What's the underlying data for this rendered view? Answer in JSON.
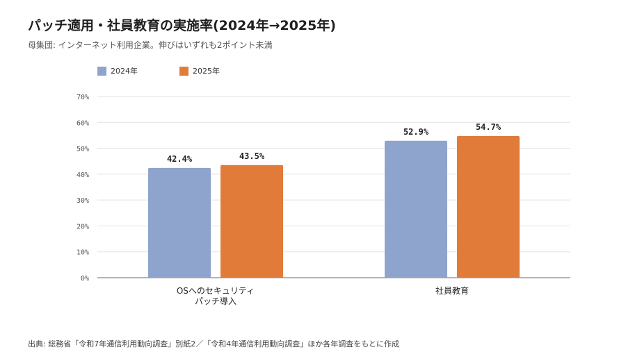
{
  "chart_data": {
    "type": "bar",
    "title": "パッチ適用・社員教育の実施率(2024年→2025年)",
    "subtitle": "母集団: インターネット利用企業。伸びはいずれも2ポイント未満",
    "categories": [
      [
        "OSへのセキュリティ",
        "パッチ導入"
      ],
      [
        "社員教育"
      ]
    ],
    "series": [
      {
        "name": "2024年",
        "color": "#8fa4cc",
        "values": [
          42.4,
          52.9
        ],
        "labels": [
          "42.4%",
          "52.9%"
        ]
      },
      {
        "name": "2025年",
        "color": "#e07b39",
        "values": [
          43.5,
          54.7
        ],
        "labels": [
          "43.5%",
          "54.7%"
        ]
      }
    ],
    "ylim": [
      0,
      70
    ],
    "yticks": [
      0,
      10,
      20,
      30,
      40,
      50,
      60,
      70
    ],
    "ytick_labels": [
      "0%",
      "10%",
      "20%",
      "30%",
      "40%",
      "50%",
      "60%",
      "70%"
    ],
    "grid": true,
    "legend_position": "top-left",
    "xlabel": "",
    "ylabel": ""
  },
  "source": "出典: 総務省「令和7年通信利用動向調査」別紙2／「令和4年通信利用動向調査」ほか各年調査をもとに作成"
}
